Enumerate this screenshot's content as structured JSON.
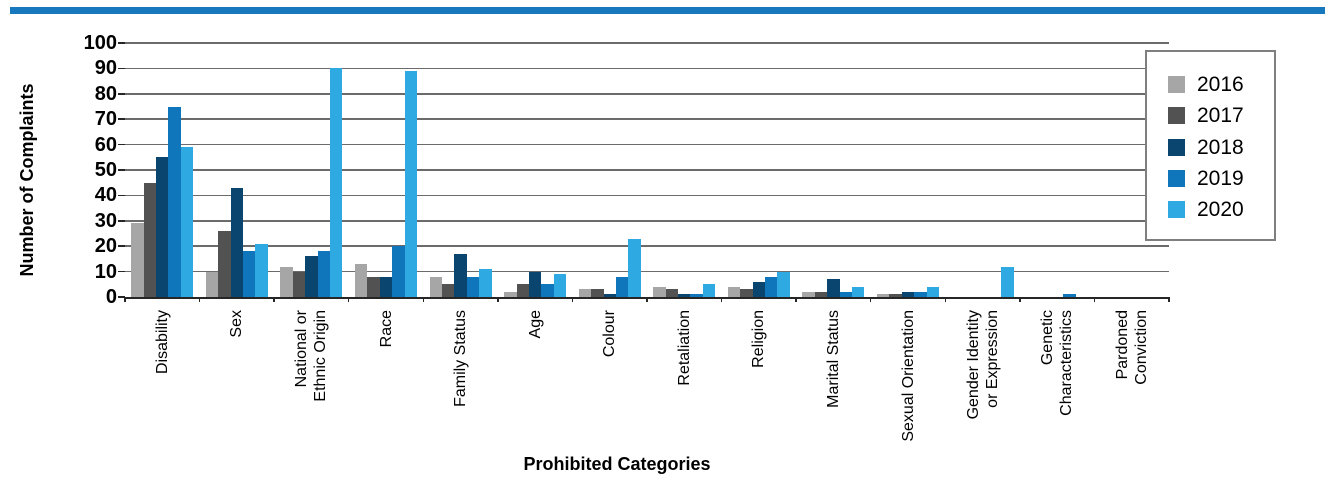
{
  "page": {
    "background": "#ffffff",
    "accent_bar_color": "#1878BD"
  },
  "colors": {
    "gridline": "#6B6B6B",
    "axis": "#262626",
    "tick": "#262626",
    "legend_border": "#7F7F7F"
  },
  "chart_data": {
    "type": "bar",
    "title": "",
    "xlabel": "Prohibited Categories",
    "ylabel": "Number of Complaints",
    "ylim": [
      0,
      100
    ],
    "ytick_step": 10,
    "yticks": [
      100,
      90,
      80,
      70,
      60,
      50,
      40,
      30,
      20,
      10,
      0
    ],
    "grid": true,
    "legend_position": "top-right",
    "categories": [
      "Disability",
      "Sex",
      "National or\nEthnic Origin",
      "Race",
      "Family Status",
      "Age",
      "Colour",
      "Retaliation",
      "Religion",
      "Marital Status",
      "Sexual Orientation",
      "Gender Identity\nor Expression",
      "Genetic\nCharacteristics",
      "Pardoned\nConviction"
    ],
    "series": [
      {
        "name": "2016",
        "color": "#A6A6A6",
        "values": [
          29,
          10,
          12,
          13,
          8,
          2,
          3,
          4,
          4,
          2,
          1,
          0,
          0,
          0
        ]
      },
      {
        "name": "2017",
        "color": "#525252",
        "values": [
          45,
          26,
          10,
          8,
          5,
          5,
          3,
          3,
          3,
          2,
          1,
          0,
          0,
          0
        ]
      },
      {
        "name": "2018",
        "color": "#0A4570",
        "values": [
          55,
          43,
          16,
          8,
          17,
          10,
          1,
          1,
          6,
          7,
          2,
          0,
          0,
          0
        ]
      },
      {
        "name": "2019",
        "color": "#0F76BC",
        "values": [
          75,
          18,
          18,
          20,
          8,
          5,
          8,
          1,
          8,
          2,
          2,
          0,
          1,
          0
        ]
      },
      {
        "name": "2020",
        "color": "#2FA9E1",
        "values": [
          59,
          21,
          90,
          89,
          11,
          9,
          23,
          5,
          10,
          4,
          4,
          12,
          0,
          0
        ]
      }
    ]
  }
}
